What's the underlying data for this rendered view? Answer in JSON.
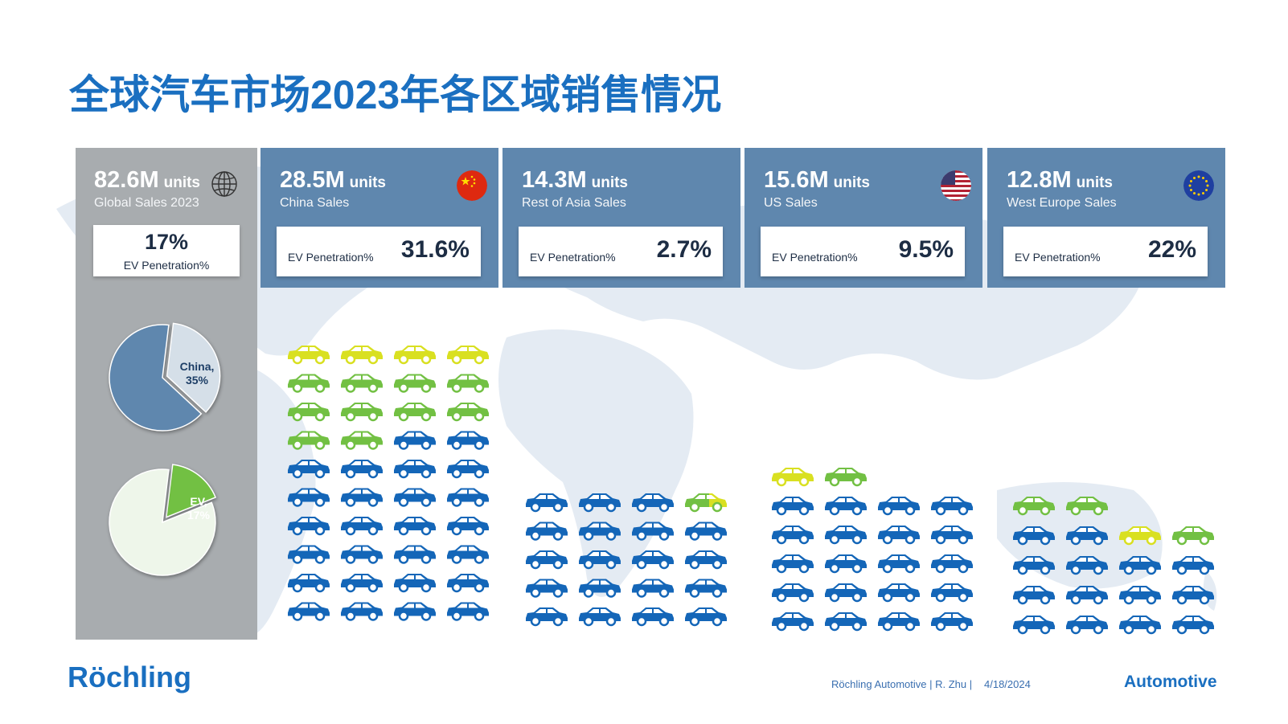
{
  "title": "全球汽车市场2023年各区域销售情况",
  "global": {
    "value": "82.6M",
    "unit": "units",
    "label": "Global Sales 2023",
    "ev_value": "17%",
    "ev_label": "EV Penetration%",
    "icon": "globe-icon"
  },
  "regions": [
    {
      "value": "28.5M",
      "unit": "units",
      "label": "China Sales",
      "ev_label": "EV Penetration%",
      "ev_value": "31.6%",
      "icon": "china-flag-icon"
    },
    {
      "value": "14.3M",
      "unit": "units",
      "label": "Rest of Asia Sales",
      "ev_label": "EV Penetration%",
      "ev_value": "2.7%",
      "icon": ""
    },
    {
      "value": "15.6M",
      "unit": "units",
      "label": "US Sales",
      "ev_label": "EV Penetration%",
      "ev_value": "9.5%",
      "icon": "us-flag-icon"
    },
    {
      "value": "12.8M",
      "unit": "units",
      "label": "West Europe Sales",
      "ev_label": "EV Penetration%",
      "ev_value": "22%",
      "icon": "eu-flag-icon"
    }
  ],
  "colors": {
    "title": "#1a6fc0",
    "card": "#5f87ae",
    "panel": "#a8acaf",
    "car_ice": "#1466b8",
    "car_bev": "#72c043",
    "car_phev": "#d9e021",
    "pie_main": "#5f87ae",
    "pie_china": "#d5dfe8",
    "pie_rest": "#eef6ea",
    "pie_ev": "#72c043"
  },
  "chart_data": [
    {
      "type": "pie",
      "title": "",
      "slices": [
        {
          "label": "China, 35%",
          "value": 35
        },
        {
          "label": "",
          "value": 65
        }
      ]
    },
    {
      "type": "pie",
      "title": "",
      "slices": [
        {
          "label": "EV, 17%",
          "value": 17
        },
        {
          "label": "",
          "value": 83
        }
      ]
    },
    {
      "type": "pictogram",
      "title": "",
      "groups": [
        {
          "name": "China",
          "cars": [
            "y",
            "y",
            "y",
            "y",
            "g",
            "g",
            "g",
            "g",
            "g",
            "g",
            "g",
            "g",
            "g",
            "g",
            "b",
            "b",
            "b",
            "b",
            "b",
            "b",
            "b",
            "b",
            "b",
            "b",
            "b",
            "b",
            "b",
            "b",
            "b",
            "b",
            "b",
            "b",
            "b",
            "b",
            "b",
            "b",
            "b",
            "b",
            "b",
            "b"
          ]
        },
        {
          "name": "Rest of Asia",
          "cars": [
            "b",
            "b",
            "b",
            "gy",
            "b",
            "b",
            "b",
            "b",
            "b",
            "b",
            "b",
            "b",
            "b",
            "b",
            "b",
            "b",
            "b",
            "b",
            "b",
            "b"
          ]
        },
        {
          "name": "US",
          "cars": [
            "y",
            "g",
            "b",
            "b",
            "b",
            "b",
            "b",
            "b",
            "b",
            "b",
            "b",
            "b",
            "b",
            "b",
            "b",
            "b",
            "b",
            "b",
            "b",
            "b",
            "b",
            "b"
          ]
        },
        {
          "name": "West Europe",
          "cars": [
            "g",
            "g",
            "b",
            "b",
            "y",
            "g",
            "b",
            "b",
            "b",
            "b",
            "b",
            "b",
            "b",
            "b",
            "b",
            "b",
            "b",
            "b"
          ]
        }
      ]
    }
  ],
  "footer": {
    "logo": "Röchling",
    "credit": "Röchling Automotive | R. Zhu |",
    "date": "4/18/2024",
    "brand": "Automotive"
  }
}
